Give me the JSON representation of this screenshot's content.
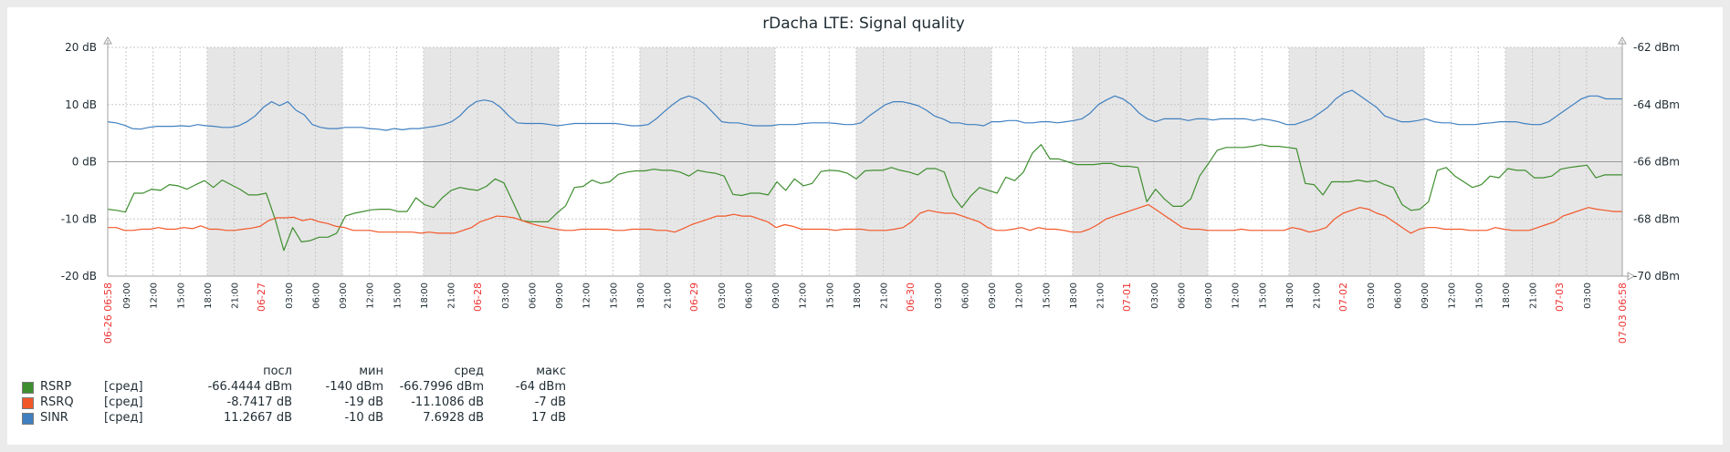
{
  "chart_data": {
    "type": "line",
    "title": "rDacha LTE: Signal quality",
    "y_left": {
      "ticks": [
        "20 dB",
        "10 dB",
        "0 dB",
        "-10 dB",
        "-20 dB"
      ],
      "range": [
        -20,
        20
      ],
      "unit": "dB"
    },
    "y_right": {
      "ticks": [
        "-62 dBm",
        "-64 dBm",
        "-66 dBm",
        "-68 dBm",
        "-70 dBm"
      ],
      "range": [
        -70,
        -62
      ],
      "unit": "dBm"
    },
    "x_start_label": "06-26 06:58",
    "x_end_label": "07-03 06:58",
    "x_ticks": [
      "09:00",
      "12:00",
      "15:00",
      "18:00",
      "21:00",
      "06-27",
      "03:00",
      "06:00",
      "09:00",
      "12:00",
      "15:00",
      "18:00",
      "21:00",
      "06-28",
      "03:00",
      "06:00",
      "09:00",
      "12:00",
      "15:00",
      "18:00",
      "21:00",
      "06-29",
      "03:00",
      "06:00",
      "09:00",
      "12:00",
      "15:00",
      "18:00",
      "21:00",
      "06-30",
      "03:00",
      "06:00",
      "09:00",
      "12:00",
      "15:00",
      "18:00",
      "21:00",
      "07-01",
      "03:00",
      "06:00",
      "09:00",
      "12:00",
      "15:00",
      "18:00",
      "21:00",
      "07-02",
      "03:00",
      "06:00",
      "09:00",
      "12:00",
      "15:00",
      "18:00",
      "21:00",
      "07-03",
      "03:00"
    ],
    "x_tick_hours": [
      2.03,
      5.03,
      8.03,
      11.03,
      14.03,
      17.03,
      20.03,
      23.03,
      26.03,
      29.03,
      32.03,
      35.03,
      38.03,
      41.03,
      44.03,
      47.03,
      50.03,
      53.03,
      56.03,
      59.03,
      62.03,
      65.03,
      68.03,
      71.03,
      74.03,
      77.03,
      80.03,
      83.03,
      86.03,
      89.03,
      92.03,
      95.03,
      98.03,
      101.03,
      104.03,
      107.03,
      110.03,
      113.03,
      116.03,
      119.03,
      122.03,
      125.03,
      128.03,
      131.03,
      134.03,
      137.03,
      140.03,
      143.03,
      146.03,
      149.03,
      152.03,
      155.03,
      158.03,
      161.03,
      164.03
    ],
    "red_tick_labels": [
      "06-27",
      "06-28",
      "06-29",
      "06-30",
      "07-01",
      "07-02",
      "07-03"
    ],
    "shaded_hour_ranges": [
      [
        11.03,
        26.03
      ],
      [
        35.03,
        50.03
      ],
      [
        59.03,
        74.03
      ],
      [
        83.03,
        98.03
      ],
      [
        107.03,
        122.03
      ],
      [
        131.03,
        146.03
      ],
      [
        155.03,
        168
      ]
    ],
    "x_hours_total": 168,
    "grid": true,
    "series": [
      {
        "name": "RSRP",
        "color": "#3e8e2f",
        "values": [
          -8.3,
          -8.5,
          -8.8,
          -5.5,
          -5.5,
          -4.8,
          -5.0,
          -4.0,
          -4.2,
          -4.8,
          -4.0,
          -3.3,
          -4.5,
          -3.2,
          -4.0,
          -4.8,
          -5.8,
          -5.8,
          -5.5,
          -10.0,
          -15.5,
          -11.5,
          -14.0,
          -13.8,
          -13.2,
          -13.2,
          -12.5,
          -9.5,
          -9.0,
          -8.7,
          -8.4,
          -8.3,
          -8.3,
          -8.7,
          -8.7,
          -6.3,
          -7.5,
          -8.0,
          -6.3,
          -5.0,
          -4.5,
          -4.8,
          -5.0,
          -4.3,
          -3.0,
          -3.7,
          -7.0,
          -10.3,
          -10.5,
          -10.5,
          -10.5,
          -9.0,
          -7.7,
          -4.5,
          -4.3,
          -3.2,
          -3.8,
          -3.5,
          -2.2,
          -1.8,
          -1.6,
          -1.6,
          -1.3,
          -1.5,
          -1.5,
          -1.8,
          -2.5,
          -1.5,
          -1.8,
          -2.0,
          -2.5,
          -5.7,
          -5.9,
          -5.5,
          -5.5,
          -5.8,
          -3.5,
          -5.0,
          -3.0,
          -4.2,
          -3.8,
          -1.7,
          -1.5,
          -1.6,
          -2.0,
          -3.0,
          -1.6,
          -1.5,
          -1.5,
          -1.0,
          -1.5,
          -1.8,
          -2.3,
          -1.2,
          -1.2,
          -1.8,
          -6.0,
          -8.0,
          -6.0,
          -4.5,
          -5.0,
          -5.5,
          -2.7,
          -3.3,
          -1.8,
          1.5,
          3.0,
          0.5,
          0.5,
          0.0,
          -0.5,
          -0.5,
          -0.5,
          -0.3,
          -0.3,
          -0.8,
          -0.8,
          -1.0,
          -7.0,
          -4.8,
          -6.5,
          -7.8,
          -7.8,
          -6.5,
          -2.5,
          -0.3,
          2.0,
          2.5,
          2.5,
          2.5,
          2.7,
          3.0,
          2.7,
          2.7,
          2.5,
          2.3,
          -3.8,
          -4.0,
          -5.8,
          -3.5,
          -3.5,
          -3.5,
          -3.2,
          -3.5,
          -3.3,
          -4.0,
          -4.5,
          -7.5,
          -8.5,
          -8.3,
          -7.0,
          -1.5,
          -1.0,
          -2.5,
          -3.5,
          -4.5,
          -4.0,
          -2.5,
          -2.8,
          -1.2,
          -1.5,
          -1.5,
          -2.8,
          -2.8,
          -2.5,
          -1.3,
          -1.0,
          -0.8,
          -0.6,
          -2.8,
          -2.3,
          -2.3,
          -2.3
        ]
      },
      {
        "name": "RSRQ",
        "color": "#f25729",
        "values": [
          -11.5,
          -11.5,
          -12.0,
          -12.0,
          -11.8,
          -11.8,
          -11.5,
          -11.8,
          -11.8,
          -11.5,
          -11.7,
          -11.2,
          -11.8,
          -11.8,
          -12.0,
          -12.0,
          -11.8,
          -11.6,
          -11.3,
          -10.3,
          -9.8,
          -9.8,
          -9.7,
          -10.3,
          -10.0,
          -10.5,
          -10.8,
          -11.3,
          -11.5,
          -12.0,
          -12.0,
          -12.0,
          -12.3,
          -12.3,
          -12.3,
          -12.3,
          -12.3,
          -12.5,
          -12.3,
          -12.5,
          -12.5,
          -12.5,
          -12.0,
          -11.5,
          -10.5,
          -10.0,
          -9.5,
          -9.6,
          -9.8,
          -10.3,
          -10.8,
          -11.2,
          -11.5,
          -11.8,
          -12.0,
          -12.0,
          -11.8,
          -11.8,
          -11.8,
          -11.8,
          -12.0,
          -12.0,
          -11.8,
          -11.8,
          -11.8,
          -12.0,
          -12.0,
          -12.3,
          -11.7,
          -11.0,
          -10.5,
          -10.0,
          -9.5,
          -9.5,
          -9.2,
          -9.5,
          -9.5,
          -10.0,
          -10.5,
          -11.5,
          -11.0,
          -11.3,
          -11.8,
          -11.8,
          -11.8,
          -11.8,
          -12.0,
          -11.8,
          -11.8,
          -11.8,
          -12.0,
          -12.0,
          -12.0,
          -11.8,
          -11.5,
          -10.5,
          -9.0,
          -8.5,
          -8.8,
          -9.0,
          -9.0,
          -9.5,
          -10.0,
          -10.5,
          -11.5,
          -12.0,
          -12.0,
          -11.8,
          -11.5,
          -12.0,
          -11.5,
          -11.8,
          -11.8,
          -12.0,
          -12.3,
          -12.3,
          -11.8,
          -11.0,
          -10.0,
          -9.5,
          -9.0,
          -8.5,
          -8.0,
          -7.5,
          -8.5,
          -9.5,
          -10.5,
          -11.5,
          -11.8,
          -11.8,
          -12.0,
          -12.0,
          -12.0,
          -12.0,
          -11.8,
          -12.0,
          -12.0,
          -12.0,
          -12.0,
          -12.0,
          -11.5,
          -11.8,
          -12.3,
          -12.0,
          -11.5,
          -10.0,
          -9.0,
          -8.5,
          -8.0,
          -8.3,
          -9.0,
          -9.5,
          -10.5,
          -11.5,
          -12.5,
          -11.8,
          -11.5,
          -11.5,
          -11.8,
          -11.8,
          -11.8,
          -12.0,
          -12.0,
          -12.0,
          -11.5,
          -11.8,
          -12.0,
          -12.0,
          -12.0,
          -11.5,
          -11.0,
          -10.5,
          -9.5,
          -9.0,
          -8.5,
          -8.0,
          -8.3,
          -8.5,
          -8.7,
          -8.7
        ]
      },
      {
        "name": "SINR",
        "color": "#4080c0",
        "values": [
          7.0,
          6.8,
          6.4,
          5.8,
          5.7,
          6.0,
          6.2,
          6.2,
          6.2,
          6.3,
          6.2,
          6.5,
          6.3,
          6.2,
          6.0,
          6.0,
          6.3,
          7.0,
          8.0,
          9.5,
          10.5,
          9.8,
          10.5,
          9.0,
          8.2,
          6.5,
          6.0,
          5.8,
          5.8,
          6.0,
          6.0,
          6.0,
          5.8,
          5.7,
          5.5,
          5.8,
          5.6,
          5.8,
          5.8,
          6.0,
          6.2,
          6.5,
          7.0,
          8.0,
          9.5,
          10.5,
          10.8,
          10.5,
          9.5,
          8.0,
          6.8,
          6.7,
          6.7,
          6.7,
          6.5,
          6.3,
          6.5,
          6.7,
          6.7,
          6.7,
          6.7,
          6.7,
          6.7,
          6.5,
          6.3,
          6.3,
          6.5,
          7.5,
          8.8,
          10.0,
          11.0,
          11.5,
          11.0,
          10.0,
          8.5,
          7.0,
          6.8,
          6.8,
          6.5,
          6.3,
          6.3,
          6.3,
          6.5,
          6.5,
          6.5,
          6.7,
          6.8,
          6.8,
          6.8,
          6.7,
          6.5,
          6.5,
          6.8,
          8.0,
          9.0,
          10.0,
          10.5,
          10.5,
          10.2,
          9.8,
          9.0,
          8.0,
          7.5,
          6.8,
          6.8,
          6.5,
          6.5,
          6.3,
          7.0,
          7.0,
          7.2,
          7.2,
          6.8,
          6.8,
          7.0,
          7.0,
          6.8,
          7.0,
          7.2,
          7.5,
          8.5,
          10.0,
          10.8,
          11.5,
          11.0,
          10.0,
          8.5,
          7.5,
          7.0,
          7.5,
          7.5,
          7.5,
          7.2,
          7.5,
          7.5,
          7.3,
          7.5,
          7.5,
          7.5,
          7.5,
          7.2,
          7.5,
          7.3,
          7.0,
          6.5,
          6.5,
          7.0,
          7.5,
          8.5,
          9.5,
          11.0,
          12.0,
          12.5,
          11.5,
          10.5,
          9.5,
          8.0,
          7.5,
          7.0,
          7.0,
          7.2,
          7.5,
          7.0,
          6.8,
          6.8,
          6.5,
          6.5,
          6.5,
          6.7,
          6.8,
          7.0,
          7.0,
          7.0,
          6.7,
          6.5,
          6.5,
          7.0,
          8.0,
          9.0,
          10.0,
          11.0,
          11.5,
          11.5,
          11.0,
          11.0,
          11.0
        ]
      }
    ],
    "legend": {
      "headers": {
        "last": "посл",
        "min": "мин",
        "avg": "сред",
        "max": "макс"
      },
      "rows": [
        {
          "name": "RSRP",
          "fn": "[сред]",
          "color": "#3e8e2f",
          "last": "-66.4444 dBm",
          "min": "-140 dBm",
          "avg": "-66.7996 dBm",
          "max": "-64 dBm"
        },
        {
          "name": "RSRQ",
          "fn": "[сред]",
          "color": "#f25729",
          "last": "-8.7417 dB",
          "min": "-19 dB",
          "avg": "-11.1086 dB",
          "max": "-7 dB"
        },
        {
          "name": "SINR",
          "fn": "[сред]",
          "color": "#4080c0",
          "last": "11.2667 dB",
          "min": "-10 dB",
          "avg": "7.6928 dB",
          "max": "17 dB"
        }
      ]
    }
  }
}
